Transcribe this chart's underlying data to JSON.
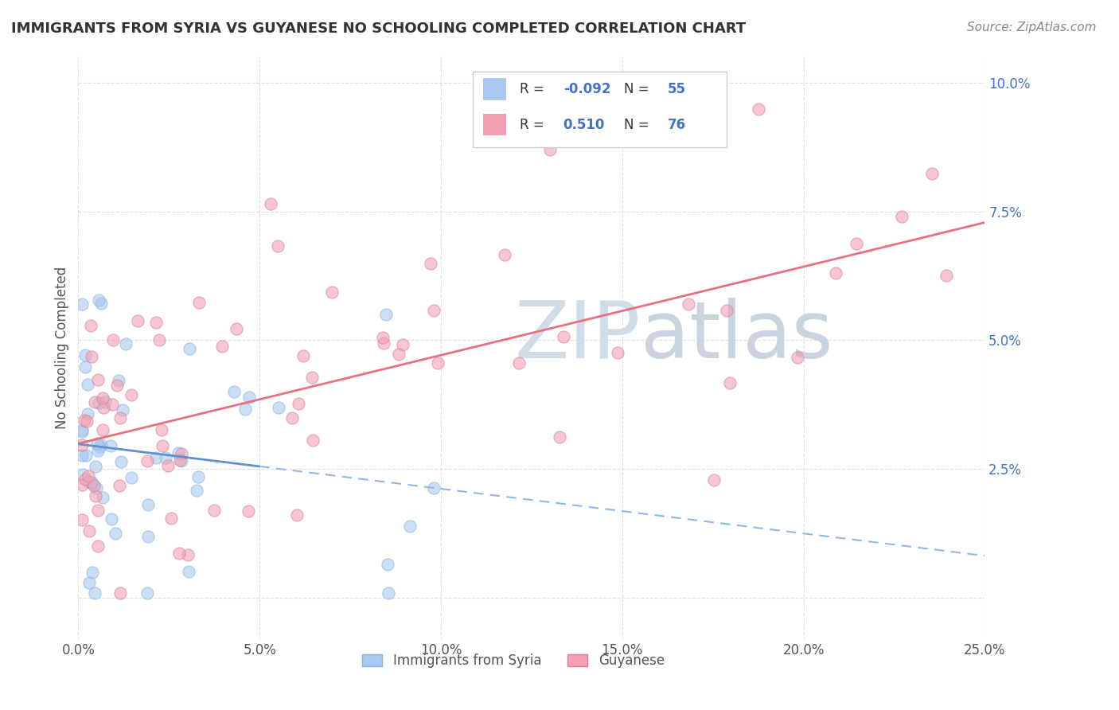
{
  "title": "IMMIGRANTS FROM SYRIA VS GUYANESE NO SCHOOLING COMPLETED CORRELATION CHART",
  "source": "Source: ZipAtlas.com",
  "ylabel": "No Schooling Completed",
  "legend_labels": [
    "Immigrants from Syria",
    "Guyanese"
  ],
  "R_syria": -0.092,
  "N_syria": 55,
  "R_guyanese": 0.51,
  "N_guyanese": 76,
  "xlim": [
    0.0,
    0.25
  ],
  "ylim": [
    -0.008,
    0.105
  ],
  "xtick_pos": [
    0.0,
    0.05,
    0.1,
    0.15,
    0.2,
    0.25
  ],
  "xtick_labels": [
    "0.0%",
    "5.0%",
    "10.0%",
    "15.0%",
    "20.0%",
    "25.0%"
  ],
  "ytick_pos": [
    0.0,
    0.025,
    0.05,
    0.075,
    0.1
  ],
  "ytick_labels": [
    "",
    "2.5%",
    "5.0%",
    "7.5%",
    "10.0%"
  ],
  "color_syria": "#a8c8f0",
  "color_guyanese": "#f4a0b4",
  "trend_color_syria_solid": "#6090d0",
  "trend_color_syria_dash": "#90b8e8",
  "trend_color_guyanese": "#e87080",
  "background_color": "#ffffff",
  "grid_color": "#d8d8d8",
  "watermark_color": "#d0dce8",
  "title_color": "#333333",
  "tick_color": "#4472c4",
  "label_color": "#555555",
  "source_color": "#888888"
}
